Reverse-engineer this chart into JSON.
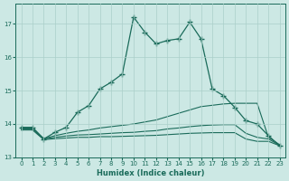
{
  "xlabel": "Humidex (Indice chaleur)",
  "background_color": "#cce8e4",
  "grid_color": "#aacfc9",
  "line_color": "#1a6b5a",
  "xlim": [
    -0.5,
    23.5
  ],
  "ylim": [
    13.0,
    17.6
  ],
  "yticks": [
    13,
    14,
    15,
    16,
    17
  ],
  "xticks": [
    0,
    1,
    2,
    3,
    4,
    5,
    6,
    7,
    8,
    9,
    10,
    11,
    12,
    13,
    14,
    15,
    16,
    17,
    18,
    19,
    20,
    21,
    22,
    23
  ],
  "series": [
    {
      "x": [
        0,
        1,
        2,
        3,
        4,
        5,
        6,
        7,
        8,
        9,
        10,
        11,
        12,
        13,
        14,
        15,
        16,
        17,
        18,
        19,
        20,
        21,
        22,
        23
      ],
      "y": [
        13.9,
        13.9,
        13.55,
        13.75,
        13.9,
        14.35,
        14.55,
        15.05,
        15.25,
        15.5,
        17.2,
        16.75,
        16.4,
        16.5,
        16.55,
        17.05,
        16.55,
        15.05,
        14.85,
        14.5,
        14.1,
        14.0,
        13.65,
        13.35
      ],
      "has_markers": true
    },
    {
      "x": [
        0,
        1,
        2,
        3,
        4,
        5,
        6,
        7,
        8,
        9,
        10,
        11,
        12,
        13,
        14,
        15,
        16,
        17,
        18,
        19,
        20,
        21,
        22,
        23
      ],
      "y": [
        13.88,
        13.88,
        13.56,
        13.65,
        13.72,
        13.78,
        13.82,
        13.88,
        13.92,
        13.96,
        14.0,
        14.06,
        14.12,
        14.22,
        14.32,
        14.42,
        14.52,
        14.56,
        14.6,
        14.62,
        14.62,
        14.62,
        13.6,
        13.38
      ],
      "has_markers": false
    },
    {
      "x": [
        0,
        1,
        2,
        3,
        4,
        5,
        6,
        7,
        8,
        9,
        10,
        11,
        12,
        13,
        14,
        15,
        16,
        17,
        18,
        19,
        20,
        21,
        22,
        23
      ],
      "y": [
        13.85,
        13.85,
        13.55,
        13.6,
        13.64,
        13.67,
        13.68,
        13.7,
        13.72,
        13.74,
        13.75,
        13.78,
        13.8,
        13.85,
        13.88,
        13.92,
        13.95,
        13.97,
        13.98,
        13.98,
        13.72,
        13.6,
        13.55,
        13.36
      ],
      "has_markers": false
    },
    {
      "x": [
        0,
        1,
        2,
        3,
        4,
        5,
        6,
        7,
        8,
        9,
        10,
        11,
        12,
        13,
        14,
        15,
        16,
        17,
        18,
        19,
        20,
        21,
        22,
        23
      ],
      "y": [
        13.82,
        13.82,
        13.53,
        13.56,
        13.58,
        13.6,
        13.6,
        13.62,
        13.62,
        13.63,
        13.64,
        13.65,
        13.66,
        13.68,
        13.7,
        13.72,
        13.73,
        13.74,
        13.74,
        13.74,
        13.55,
        13.48,
        13.48,
        13.35
      ],
      "has_markers": false
    }
  ]
}
